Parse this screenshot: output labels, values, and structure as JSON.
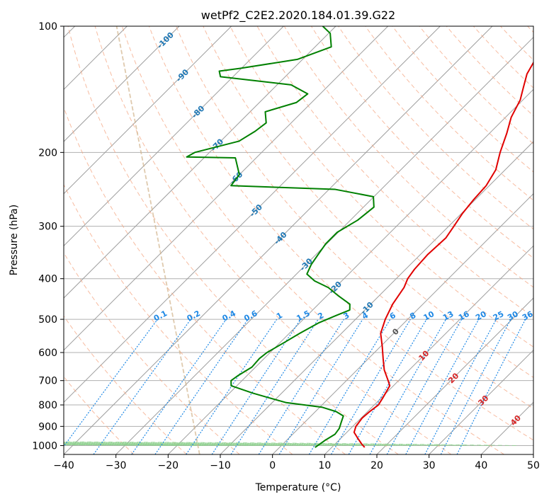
{
  "chart_data": {
    "type": "line",
    "chart_kind": "skew-T log-p diagram",
    "title": "wetPf2_C2E2.2020.184.01.39.G22",
    "xlabel": "Temperature (°C)",
    "ylabel": "Pressure (hPa)",
    "x_ticks": [
      "−40",
      "−30",
      "−20",
      "−10",
      "0",
      "10",
      "20",
      "30",
      "40",
      "50"
    ],
    "y_ticks": [
      "100",
      "200",
      "300",
      "400",
      "500",
      "600",
      "700",
      "800",
      "900",
      "1000"
    ],
    "xlim": [
      -40,
      50
    ],
    "ylim": [
      1050,
      100
    ],
    "y_scale": "log",
    "grid": true,
    "colors": {
      "temperature": "#e00000",
      "dewpoint": "#008000",
      "dry_adiabat": "#f4a582",
      "moist_adiabat": "#8fcf8f",
      "mixing_ratio": "#1e88e5",
      "isotherm": "#9e9e9e",
      "special": "#d2b48c",
      "label_blue": "#1f77b4",
      "label_red": "#d62728"
    },
    "isotherm_labels": [
      {
        "text": "-100",
        "t": -100,
        "p": 108
      },
      {
        "text": "-90",
        "t": -90,
        "p": 131
      },
      {
        "text": "-80",
        "t": -80,
        "p": 160
      },
      {
        "text": "-70",
        "t": -70,
        "p": 192
      },
      {
        "text": "-60",
        "t": -60,
        "p": 230
      },
      {
        "text": "-50",
        "t": -50,
        "p": 275
      },
      {
        "text": "-40",
        "t": -40,
        "p": 320
      },
      {
        "text": "-30",
        "t": -30,
        "p": 370
      },
      {
        "text": "-20",
        "t": -20,
        "p": 420
      },
      {
        "text": "-10",
        "t": -10,
        "p": 470
      },
      {
        "text": "0",
        "t": 0,
        "p": 535
      },
      {
        "text": "10",
        "t": 10,
        "p": 610
      },
      {
        "text": "20",
        "t": 20,
        "p": 690
      },
      {
        "text": "30",
        "t": 30,
        "p": 780
      },
      {
        "text": "40",
        "t": 40,
        "p": 870
      }
    ],
    "mixing_ratio_values": [
      0.1,
      0.2,
      0.4,
      0.6,
      1,
      1.5,
      2,
      3,
      4,
      6,
      8,
      10,
      13,
      16,
      20,
      25,
      30,
      36
    ],
    "mixing_ratio_labels": [
      "0.1",
      "0.2",
      "0.4",
      "0.6",
      "1",
      "1.5",
      "2",
      "3",
      "4",
      "6",
      "8",
      "10",
      "13",
      "16",
      "20",
      "25",
      "30",
      "36"
    ],
    "mixing_ratio_label_p": 490,
    "series": [
      {
        "key": "temperature",
        "points": [
          [
            1010,
            16.3
          ],
          [
            990,
            15.0
          ],
          [
            960,
            13.2
          ],
          [
            930,
            11.4
          ],
          [
            900,
            10.6
          ],
          [
            860,
            10.2
          ],
          [
            830,
            10.4
          ],
          [
            800,
            10.8
          ],
          [
            770,
            10.3
          ],
          [
            720,
            9.3
          ],
          [
            700,
            8.0
          ],
          [
            660,
            5.2
          ],
          [
            620,
            2.8
          ],
          [
            580,
            0.3
          ],
          [
            540,
            -2.5
          ],
          [
            500,
            -4.3
          ],
          [
            460,
            -5.8
          ],
          [
            420,
            -6.8
          ],
          [
            400,
            -7.8
          ],
          [
            380,
            -8.3
          ],
          [
            350,
            -8.6
          ],
          [
            320,
            -8.3
          ],
          [
            300,
            -9.0
          ],
          [
            280,
            -9.8
          ],
          [
            260,
            -10.3
          ],
          [
            240,
            -10.6
          ],
          [
            220,
            -11.8
          ],
          [
            200,
            -14.3
          ],
          [
            180,
            -16.7
          ],
          [
            165,
            -18.9
          ],
          [
            150,
            -20.5
          ],
          [
            140,
            -22.3
          ],
          [
            130,
            -24.2
          ],
          [
            120,
            -25.4
          ],
          [
            110,
            -26.7
          ],
          [
            100,
            -28.2
          ]
        ]
      },
      {
        "key": "dewpoint",
        "points": [
          [
            1010,
            6.8
          ],
          [
            970,
            7.4
          ],
          [
            940,
            8.1
          ],
          [
            910,
            7.8
          ],
          [
            880,
            7.0
          ],
          [
            850,
            6.2
          ],
          [
            830,
            4.0
          ],
          [
            810,
            0.4
          ],
          [
            790,
            -7.3
          ],
          [
            770,
            -11.4
          ],
          [
            750,
            -15.5
          ],
          [
            720,
            -21.1
          ],
          [
            700,
            -22.1
          ],
          [
            680,
            -21.7
          ],
          [
            650,
            -20.7
          ],
          [
            620,
            -20.9
          ],
          [
            600,
            -20.6
          ],
          [
            570,
            -19.3
          ],
          [
            540,
            -18.0
          ],
          [
            510,
            -16.4
          ],
          [
            490,
            -14.5
          ],
          [
            475,
            -12.9
          ],
          [
            460,
            -14.0
          ],
          [
            440,
            -17.7
          ],
          [
            420,
            -21.3
          ],
          [
            405,
            -25.2
          ],
          [
            390,
            -28.0
          ],
          [
            370,
            -29.0
          ],
          [
            350,
            -29.6
          ],
          [
            330,
            -30.2
          ],
          [
            310,
            -30.2
          ],
          [
            290,
            -28.6
          ],
          [
            270,
            -28.0
          ],
          [
            255,
            -30.1
          ],
          [
            245,
            -38.8
          ],
          [
            240,
            -59.5
          ],
          [
            226,
            -60.0
          ],
          [
            206,
            -64.0
          ],
          [
            205,
            -73.5
          ],
          [
            200,
            -72.8
          ],
          [
            188,
            -66.5
          ],
          [
            178,
            -65.3
          ],
          [
            170,
            -64.8
          ],
          [
            160,
            -67.1
          ],
          [
            152,
            -62.9
          ],
          [
            145,
            -62.4
          ],
          [
            138,
            -67.3
          ],
          [
            132,
            -82.4
          ],
          [
            128,
            -83.7
          ],
          [
            126,
            -80.2
          ],
          [
            120,
            -71.0
          ],
          [
            112,
            -66.9
          ],
          [
            104,
            -69.7
          ],
          [
            100,
            -72.5
          ]
        ]
      }
    ]
  }
}
